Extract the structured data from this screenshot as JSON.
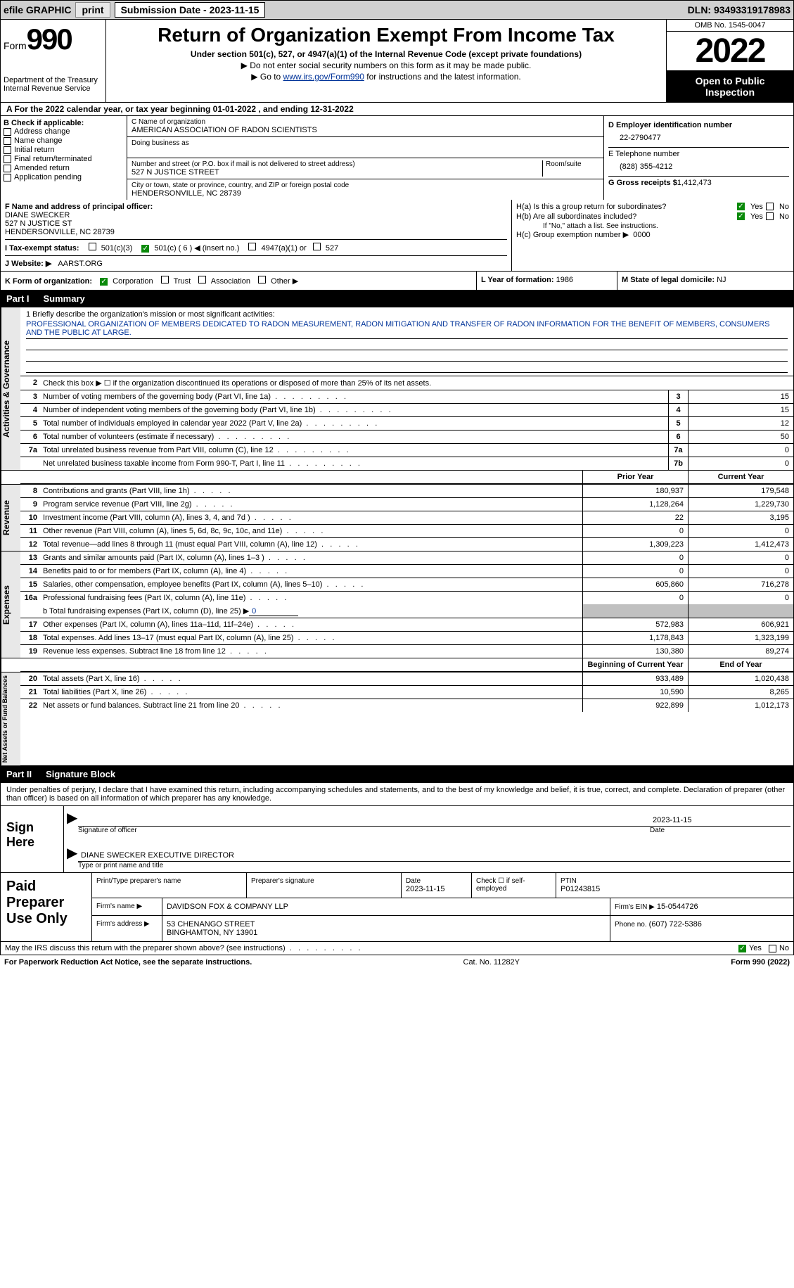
{
  "colors": {
    "label_blue": "#003399",
    "check_green": "#0a8a0a",
    "shade": "#c0c0c0",
    "gray_bg": "#d0d0d0"
  },
  "top": {
    "efile": "efile GRAPHIC",
    "print": "print",
    "sub_label": "Submission Date - 2023-11-15",
    "dln": "DLN: 93493319178983"
  },
  "header": {
    "form_word": "Form",
    "form_no": "990",
    "title": "Return of Organization Exempt From Income Tax",
    "subtitle": "Under section 501(c), 527, or 4947(a)(1) of the Internal Revenue Code (except private foundations)",
    "sub1": "▶ Do not enter social security numbers on this form as it may be made public.",
    "sub2_pre": "▶ Go to ",
    "sub2_link": "www.irs.gov/Form990",
    "sub2_post": " for instructions and the latest information.",
    "dept": "Department of the Treasury",
    "irs": "Internal Revenue Service",
    "omb": "OMB No. 1545-0047",
    "year": "2022",
    "open": "Open to Public Inspection"
  },
  "a": "A For the 2022 calendar year, or tax year beginning 01-01-2022   , and ending 12-31-2022",
  "b": {
    "label": "B Check if applicable:",
    "items": [
      "Address change",
      "Name change",
      "Initial return",
      "Final return/terminated",
      "Amended return",
      "Application pending"
    ]
  },
  "c": {
    "name_lbl": "C Name of organization",
    "name": "AMERICAN ASSOCIATION OF RADON SCIENTISTS",
    "dba_lbl": "Doing business as",
    "dba": "",
    "street_lbl": "Number and street (or P.O. box if mail is not delivered to street address)",
    "room_lbl": "Room/suite",
    "street": "527 N JUSTICE STREET",
    "city_lbl": "City or town, state or province, country, and ZIP or foreign postal code",
    "city": "HENDERSONVILLE, NC  28739"
  },
  "d": {
    "ein_lbl": "D Employer identification number",
    "ein": "22-2790477",
    "tel_lbl": "E Telephone number",
    "tel": "(828) 355-4212",
    "gross_lbl": "G Gross receipts $",
    "gross": "1,412,473"
  },
  "f": {
    "lbl": "F Name and address of principal officer:",
    "name": "DIANE SWECKER",
    "street": "527 N JUSTICE ST",
    "city": "HENDERSONVILLE, NC  28739"
  },
  "h": {
    "a_lbl": "H(a)  Is this a group return for subordinates?",
    "b_lbl": "H(b)  Are all subordinates included?",
    "b_note": "If \"No,\" attach a list. See instructions.",
    "c_lbl": "H(c)  Group exemption number ▶",
    "c_val": "0000",
    "yes": "Yes",
    "no": "No"
  },
  "i": {
    "lbl": "I   Tax-exempt status:",
    "opts": [
      "501(c)(3)",
      "501(c) ( 6 ) ◀ (insert no.)",
      "4947(a)(1) or",
      "527"
    ]
  },
  "j": {
    "lbl": "J   Website: ▶",
    "val": "AARST.ORG"
  },
  "k": {
    "lbl": "K Form of organization:",
    "opts": [
      "Corporation",
      "Trust",
      "Association",
      "Other ▶"
    ]
  },
  "l": {
    "lbl": "L Year of formation:",
    "val": "1986"
  },
  "m": {
    "lbl": "M State of legal domicile:",
    "val": "NJ"
  },
  "part1": {
    "num": "Part I",
    "title": "Summary"
  },
  "mission": {
    "lbl": "1   Briefly describe the organization's mission or most significant activities:",
    "text": "PROFESSIONAL ORGANIZATION OF MEMBERS DEDICATED TO RADON MEASUREMENT, RADON MITIGATION AND TRANSFER OF RADON INFORMATION FOR THE BENEFIT OF MEMBERS, CONSUMERS AND THE PUBLIC AT LARGE."
  },
  "line2": "Check this box ▶ ☐ if the organization discontinued its operations or disposed of more than 25% of its net assets.",
  "summary": [
    {
      "n": "3",
      "d": "Number of voting members of the governing body (Part VI, line 1a)",
      "b": "3",
      "v": "15"
    },
    {
      "n": "4",
      "d": "Number of independent voting members of the governing body (Part VI, line 1b)",
      "b": "4",
      "v": "15"
    },
    {
      "n": "5",
      "d": "Total number of individuals employed in calendar year 2022 (Part V, line 2a)",
      "b": "5",
      "v": "12"
    },
    {
      "n": "6",
      "d": "Total number of volunteers (estimate if necessary)",
      "b": "6",
      "v": "50"
    },
    {
      "n": "7a",
      "d": "Total unrelated business revenue from Part VIII, column (C), line 12",
      "b": "7a",
      "v": "0"
    },
    {
      "n": "",
      "d": "Net unrelated business taxable income from Form 990-T, Part I, line 11",
      "b": "7b",
      "v": "0"
    }
  ],
  "hdr_prior": "Prior Year",
  "hdr_current": "Current Year",
  "revenue": [
    {
      "n": "8",
      "d": "Contributions and grants (Part VIII, line 1h)",
      "p": "180,937",
      "c": "179,548"
    },
    {
      "n": "9",
      "d": "Program service revenue (Part VIII, line 2g)",
      "p": "1,128,264",
      "c": "1,229,730"
    },
    {
      "n": "10",
      "d": "Investment income (Part VIII, column (A), lines 3, 4, and 7d )",
      "p": "22",
      "c": "3,195"
    },
    {
      "n": "11",
      "d": "Other revenue (Part VIII, column (A), lines 5, 6d, 8c, 9c, 10c, and 11e)",
      "p": "0",
      "c": "0"
    },
    {
      "n": "12",
      "d": "Total revenue—add lines 8 through 11 (must equal Part VIII, column (A), line 12)",
      "p": "1,309,223",
      "c": "1,412,473"
    }
  ],
  "expenses": [
    {
      "n": "13",
      "d": "Grants and similar amounts paid (Part IX, column (A), lines 1–3 )",
      "p": "0",
      "c": "0"
    },
    {
      "n": "14",
      "d": "Benefits paid to or for members (Part IX, column (A), line 4)",
      "p": "0",
      "c": "0"
    },
    {
      "n": "15",
      "d": "Salaries, other compensation, employee benefits (Part IX, column (A), lines 5–10)",
      "p": "605,860",
      "c": "716,278"
    },
    {
      "n": "16a",
      "d": "Professional fundraising fees (Part IX, column (A), line 11e)",
      "p": "0",
      "c": "0"
    }
  ],
  "line16b_pre": "b  Total fundraising expenses (Part IX, column (D), line 25) ▶",
  "line16b_val": "0",
  "expenses2": [
    {
      "n": "17",
      "d": "Other expenses (Part IX, column (A), lines 11a–11d, 11f–24e)",
      "p": "572,983",
      "c": "606,921"
    },
    {
      "n": "18",
      "d": "Total expenses. Add lines 13–17 (must equal Part IX, column (A), line 25)",
      "p": "1,178,843",
      "c": "1,323,199"
    },
    {
      "n": "19",
      "d": "Revenue less expenses. Subtract line 18 from line 12",
      "p": "130,380",
      "c": "89,274"
    }
  ],
  "hdr_begin": "Beginning of Current Year",
  "hdr_end": "End of Year",
  "net": [
    {
      "n": "20",
      "d": "Total assets (Part X, line 16)",
      "p": "933,489",
      "c": "1,020,438"
    },
    {
      "n": "21",
      "d": "Total liabilities (Part X, line 26)",
      "p": "10,590",
      "c": "8,265"
    },
    {
      "n": "22",
      "d": "Net assets or fund balances. Subtract line 21 from line 20",
      "p": "922,899",
      "c": "1,012,173"
    }
  ],
  "vtabs": {
    "ag": "Activities & Governance",
    "rev": "Revenue",
    "exp": "Expenses",
    "net": "Net Assets or Fund Balances"
  },
  "part2": {
    "num": "Part II",
    "title": "Signature Block"
  },
  "declare": "Under penalties of perjury, I declare that I have examined this return, including accompanying schedules and statements, and to the best of my knowledge and belief, it is true, correct, and complete. Declaration of preparer (other than officer) is based on all information of which preparer has any knowledge.",
  "sign": {
    "here": "Sign Here",
    "date": "2023-11-15",
    "sig_lbl": "Signature of officer",
    "date_lbl": "Date",
    "name": "DIANE SWECKER  EXECUTIVE DIRECTOR",
    "name_lbl": "Type or print name and title"
  },
  "paid": {
    "title": "Paid Preparer Use Only",
    "print_lbl": "Print/Type preparer's name",
    "sig_lbl": "Preparer's signature",
    "date_lbl": "Date",
    "date": "2023-11-15",
    "check_lbl": "Check ☐ if self-employed",
    "ptin_lbl": "PTIN",
    "ptin": "P01243815",
    "firm_name_lbl": "Firm's name    ▶",
    "firm_name": "DAVIDSON FOX & COMPANY LLP",
    "firm_ein_lbl": "Firm's EIN ▶",
    "firm_ein": "15-0544726",
    "firm_addr_lbl": "Firm's address ▶",
    "firm_addr1": "53 CHENANGO STREET",
    "firm_addr2": "BINGHAMTON, NY  13901",
    "phone_lbl": "Phone no.",
    "phone": "(607) 722-5386"
  },
  "may": {
    "q": "May the IRS discuss this return with the preparer shown above? (see instructions)",
    "yes": "Yes",
    "no": "No"
  },
  "footer": {
    "left": "For Paperwork Reduction Act Notice, see the separate instructions.",
    "mid": "Cat. No. 11282Y",
    "right": "Form 990 (2022)"
  }
}
